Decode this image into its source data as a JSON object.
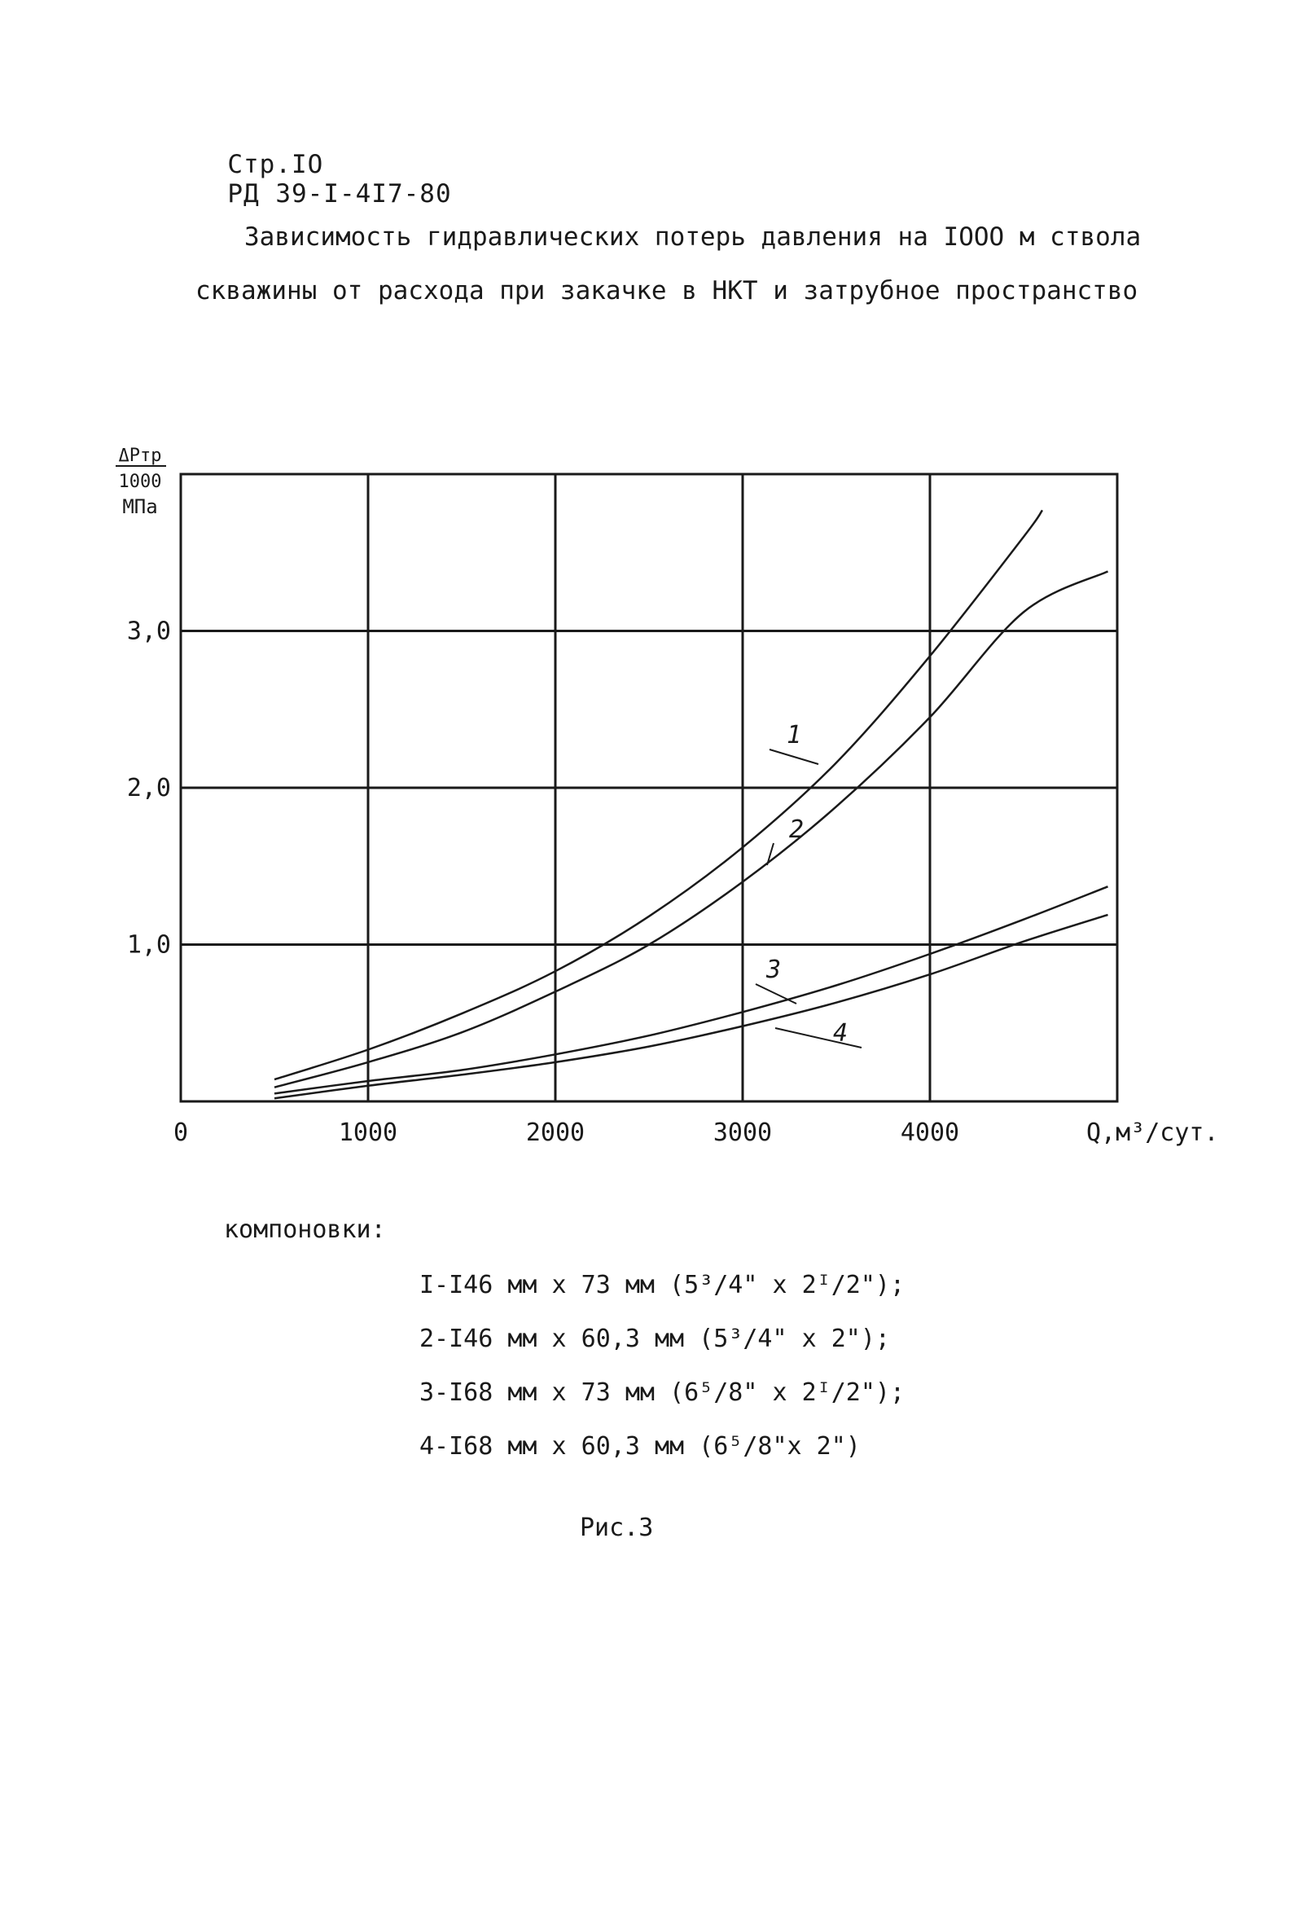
{
  "header": {
    "page": "Стр.IO",
    "doc": "РД 39-I-4I7-80"
  },
  "title": {
    "line1": "Зависимость гидравлических потерь давления на IOOO м ствола",
    "line2": "скважины от расхода при закачке в НКТ и затрубное пространство"
  },
  "legend": {
    "heading": "компоновки:",
    "items": [
      "I-I46 мм х 73 мм (5³/4\" х 2ᴵ/2\");",
      "2-I46 мм х 60,3 мм (5³/4\" х 2\");",
      "3-I68 мм х 73 мм (6⁵/8\" х 2ᴵ/2\");",
      "4-I68 мм х 60,3 мм (6⁵/8\"х 2\")"
    ]
  },
  "caption": "Рис.3",
  "chart_data": {
    "type": "line",
    "ylabel_top": "ΔРтр",
    "ylabel_mid": "1000",
    "ylabel_unit": "МПа",
    "xlabel": "Q,м³/сут.",
    "xlim": [
      0,
      5000
    ],
    "ylim": [
      0,
      4.0
    ],
    "x_ticks": [
      {
        "value": 0,
        "label": "0"
      },
      {
        "value": 1000,
        "label": "1000"
      },
      {
        "value": 2000,
        "label": "2000"
      },
      {
        "value": 3000,
        "label": "3000"
      },
      {
        "value": 4000,
        "label": "4000"
      }
    ],
    "y_ticks": [
      {
        "value": 1.0,
        "label": "1,0"
      },
      {
        "value": 2.0,
        "label": "2,0"
      },
      {
        "value": 3.0,
        "label": "3,0"
      }
    ],
    "grid": true,
    "series": [
      {
        "name": "1",
        "points": [
          [
            500,
            0.14
          ],
          [
            1000,
            0.33
          ],
          [
            1500,
            0.56
          ],
          [
            2000,
            0.83
          ],
          [
            2500,
            1.18
          ],
          [
            3000,
            1.62
          ],
          [
            3500,
            2.16
          ],
          [
            4000,
            2.84
          ],
          [
            4500,
            3.6
          ],
          [
            4600,
            3.77
          ]
        ]
      },
      {
        "name": "2",
        "points": [
          [
            500,
            0.09
          ],
          [
            1000,
            0.25
          ],
          [
            1500,
            0.44
          ],
          [
            2000,
            0.7
          ],
          [
            2500,
            1.0
          ],
          [
            3000,
            1.4
          ],
          [
            3500,
            1.88
          ],
          [
            4000,
            2.45
          ],
          [
            4500,
            3.12
          ],
          [
            4950,
            3.38
          ]
        ]
      },
      {
        "name": "3",
        "points": [
          [
            500,
            0.05
          ],
          [
            1000,
            0.13
          ],
          [
            1500,
            0.2
          ],
          [
            2000,
            0.3
          ],
          [
            2500,
            0.42
          ],
          [
            3000,
            0.57
          ],
          [
            3500,
            0.74
          ],
          [
            4000,
            0.94
          ],
          [
            4500,
            1.16
          ],
          [
            4950,
            1.37
          ]
        ]
      },
      {
        "name": "4",
        "points": [
          [
            500,
            0.02
          ],
          [
            1000,
            0.1
          ],
          [
            1500,
            0.17
          ],
          [
            2000,
            0.25
          ],
          [
            2500,
            0.35
          ],
          [
            3000,
            0.48
          ],
          [
            3500,
            0.63
          ],
          [
            4000,
            0.81
          ],
          [
            4500,
            1.02
          ],
          [
            4950,
            1.19
          ]
        ]
      }
    ],
    "series_labels": [
      {
        "name": "1",
        "text": "1"
      },
      {
        "name": "2",
        "text": "2"
      },
      {
        "name": "3",
        "text": "3"
      },
      {
        "name": "4",
        "text": "4"
      }
    ],
    "colors": {
      "ink": "#1a1a1a"
    }
  }
}
